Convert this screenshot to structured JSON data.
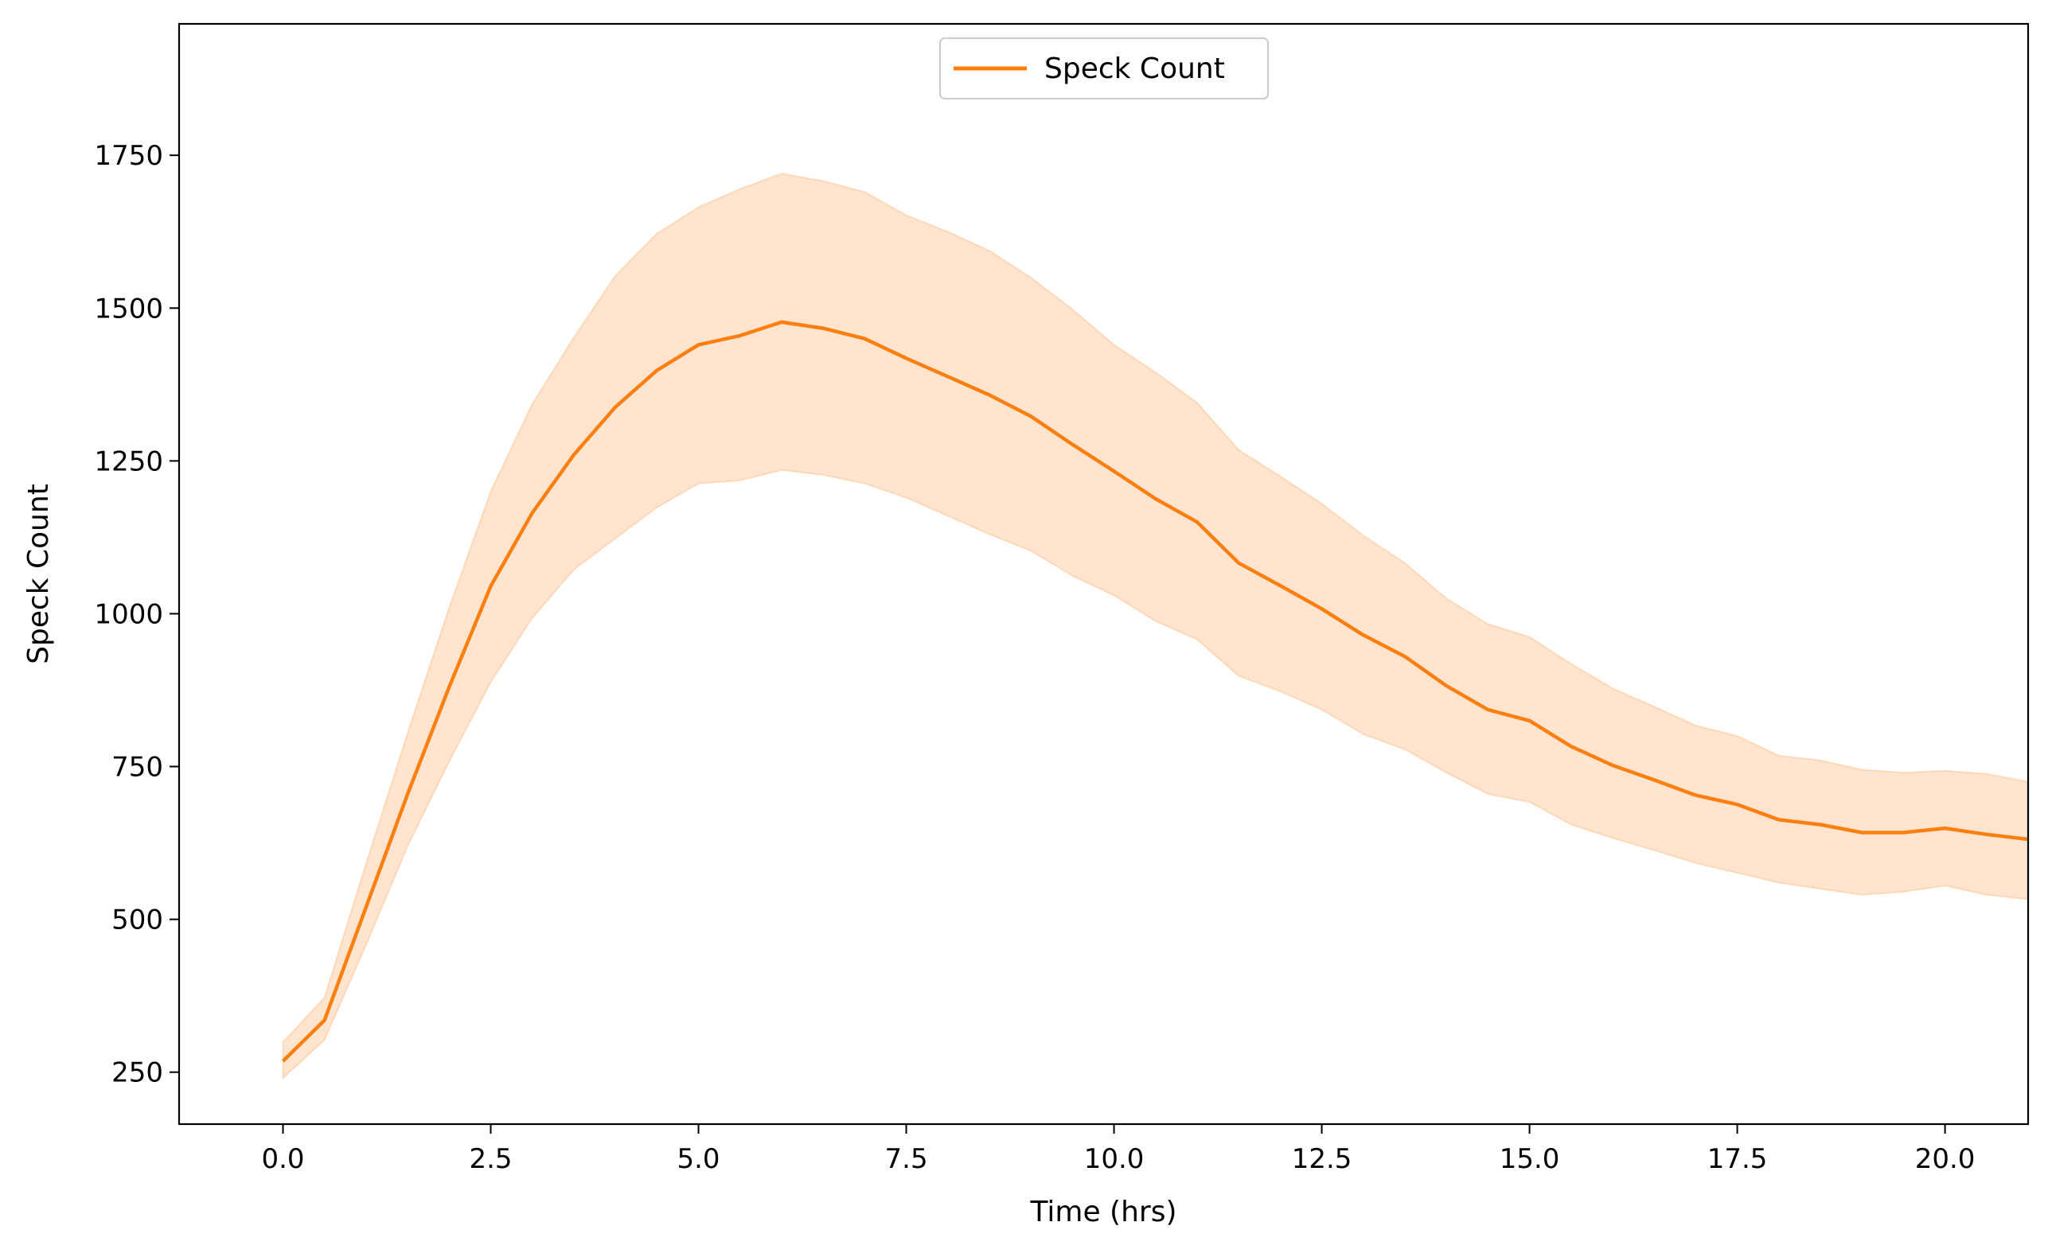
{
  "chart_data": {
    "type": "line",
    "title": "",
    "xlabel": "Time (hrs)",
    "ylabel": "Speck Count",
    "xlim": [
      -1.25,
      21.0
    ],
    "ylim": [
      165,
      1965
    ],
    "xticks": [
      0.0,
      2.5,
      5.0,
      7.5,
      10.0,
      12.5,
      15.0,
      17.5,
      20.0
    ],
    "xtick_labels": [
      "0.0",
      "2.5",
      "5.0",
      "7.5",
      "10.0",
      "12.5",
      "15.0",
      "17.5",
      "20.0"
    ],
    "yticks": [
      250,
      500,
      750,
      1000,
      1250,
      1500,
      1750
    ],
    "ytick_labels": [
      "250",
      "500",
      "750",
      "1000",
      "1250",
      "1500",
      "1750"
    ],
    "grid": false,
    "legend": {
      "position": "top-center",
      "entries": [
        "Speck Count"
      ]
    },
    "colors": {
      "line": "#ff7f0e",
      "band": "#ff7f0e",
      "band_opacity": 0.2
    },
    "x": [
      0,
      0.5,
      1,
      1.5,
      2,
      2.5,
      3,
      3.5,
      4,
      4.5,
      5,
      5.5,
      6,
      6.5,
      7,
      7.5,
      8,
      8.5,
      9,
      9.5,
      10,
      10.5,
      11,
      11.5,
      12,
      12.5,
      13,
      13.5,
      14,
      14.5,
      15,
      15.5,
      16,
      16.5,
      17,
      17.5,
      18,
      18.5,
      19,
      19.5,
      20,
      20.5,
      21
    ],
    "series": [
      {
        "name": "Speck Count",
        "values": [
          268,
          335,
          520,
          705,
          880,
          1045,
          1165,
          1260,
          1338,
          1398,
          1440,
          1455,
          1477,
          1467,
          1450,
          1418,
          1388,
          1358,
          1323,
          1277,
          1233,
          1188,
          1150,
          1083,
          1046,
          1008,
          965,
          930,
          882,
          843,
          825,
          783,
          752,
          728,
          703,
          688,
          663,
          655,
          642,
          642,
          649,
          639,
          631
        ],
        "lower": [
          240,
          303,
          458,
          620,
          758,
          888,
          993,
          1072,
          1123,
          1174,
          1213,
          1218,
          1235,
          1227,
          1213,
          1190,
          1160,
          1130,
          1103,
          1062,
          1030,
          988,
          958,
          898,
          873,
          843,
          803,
          778,
          740,
          705,
          692,
          655,
          633,
          613,
          592,
          576,
          560,
          550,
          540,
          545,
          555,
          540,
          533
        ],
        "upper": [
          299,
          372,
          591,
          805,
          1010,
          1200,
          1343,
          1452,
          1553,
          1622,
          1665,
          1695,
          1720,
          1708,
          1690,
          1652,
          1625,
          1594,
          1550,
          1498,
          1440,
          1395,
          1345,
          1268,
          1225,
          1180,
          1128,
          1083,
          1025,
          983,
          962,
          918,
          878,
          848,
          817,
          800,
          768,
          760,
          745,
          740,
          743,
          738,
          725
        ]
      }
    ]
  }
}
